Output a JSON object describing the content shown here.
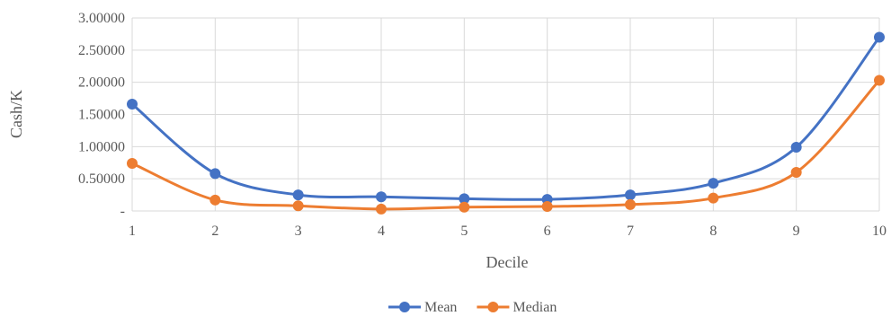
{
  "chart_data": {
    "type": "line",
    "title": "",
    "xlabel": "Decile",
    "ylabel": "Cash/K",
    "x": [
      1,
      2,
      3,
      4,
      5,
      6,
      7,
      8,
      9,
      10
    ],
    "x_tick_labels": [
      "1",
      "2",
      "3",
      "4",
      "5",
      "6",
      "7",
      "8",
      "9",
      "10"
    ],
    "ylim": [
      0,
      3
    ],
    "y_tick_values": [
      0,
      0.5,
      1,
      1.5,
      2,
      2.5,
      3
    ],
    "y_tick_labels": [
      "-",
      "0.50000",
      "1.00000",
      "1.50000",
      "2.00000",
      "2.50000",
      "3.00000"
    ],
    "grid": true,
    "legend_position": "bottom",
    "smooth": true,
    "series": [
      {
        "name": "Mean",
        "color": "#4472C4",
        "values": [
          1.66,
          0.58,
          0.25,
          0.22,
          0.19,
          0.18,
          0.25,
          0.43,
          0.99,
          2.7
        ]
      },
      {
        "name": "Median",
        "color": "#ED7D31",
        "values": [
          0.74,
          0.17,
          0.08,
          0.03,
          0.06,
          0.07,
          0.1,
          0.2,
          0.6,
          2.03
        ]
      }
    ]
  }
}
